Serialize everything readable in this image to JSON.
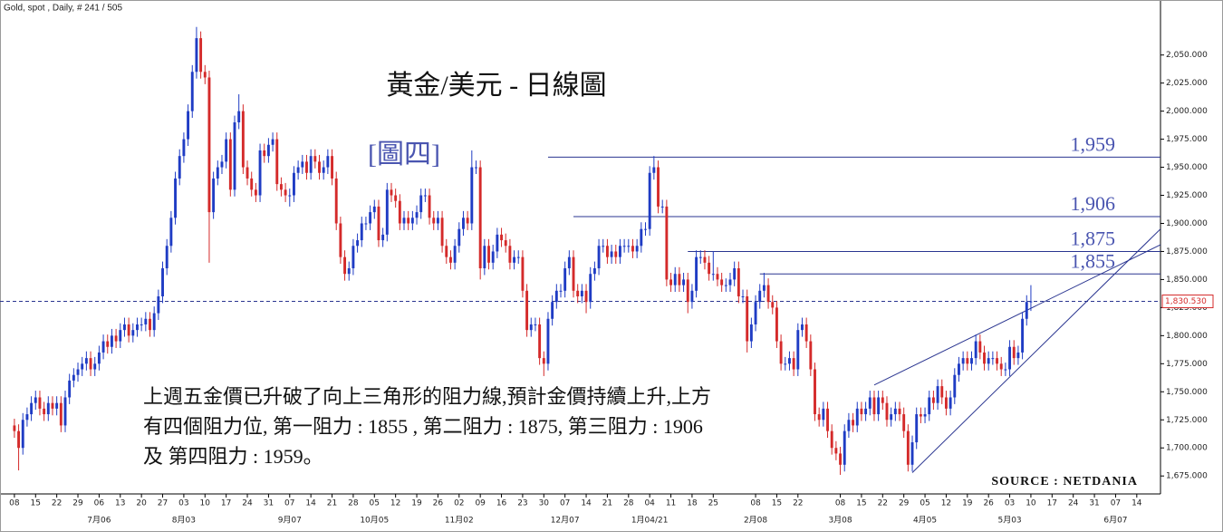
{
  "chart_data": {
    "type": "candlestick",
    "header": "Gold, spot , Daily, # 241 / 505",
    "title": "黃金/美元 - 日線圖",
    "subtitle": "[圖四]",
    "source": "SOURCE : NETDANIA",
    "annotation": [
      "上週五金價已升破了向上三角形的阻力線,預計金價持續上升,上方",
      "有四個阻力位, 第一阻力 : 1855 , 第二阻力 : 1875, 第三阻力 : 1906",
      "及 第四阻力 : 1959。"
    ],
    "colors": {
      "up": "#1f3cc4",
      "down": "#d42a2a",
      "lines": "#2a3590",
      "labels": "#4a55b0",
      "last": "#d42a2a"
    },
    "grid": false,
    "xlim": [
      -3.4,
      270.6
    ],
    "ylim": [
      1659,
      2099
    ],
    "yticks": [
      {
        "value": 1675,
        "label": "1,675.000"
      },
      {
        "value": 1700,
        "label": "1,700.000"
      },
      {
        "value": 1725,
        "label": "1,725.000"
      },
      {
        "value": 1750,
        "label": "1,750.000"
      },
      {
        "value": 1775,
        "label": "1,775.000"
      },
      {
        "value": 1800,
        "label": "1,800.000"
      },
      {
        "value": 1825,
        "label": "1,825.000"
      },
      {
        "value": 1850,
        "label": "1,850.000"
      },
      {
        "value": 1875,
        "label": "1,875.000"
      },
      {
        "value": 1900,
        "label": "1,900.000"
      },
      {
        "value": 1925,
        "label": "1,925.000"
      },
      {
        "value": 1950,
        "label": "1,950.000"
      },
      {
        "value": 1975,
        "label": "1,975.000"
      },
      {
        "value": 2000,
        "label": "2,000.000"
      },
      {
        "value": 2025,
        "label": "2,025.000"
      },
      {
        "value": 2050,
        "label": "2,050.000"
      }
    ],
    "xticks": [
      {
        "value": 0,
        "label": "08"
      },
      {
        "value": 5,
        "label": "15"
      },
      {
        "value": 10,
        "label": "22"
      },
      {
        "value": 15,
        "label": "29"
      },
      {
        "value": 20,
        "label": "06"
      },
      {
        "value": 25,
        "label": "13"
      },
      {
        "value": 30,
        "label": "20"
      },
      {
        "value": 35,
        "label": "27"
      },
      {
        "value": 40,
        "label": "03"
      },
      {
        "value": 45,
        "label": "10"
      },
      {
        "value": 50,
        "label": "17"
      },
      {
        "value": 55,
        "label": "24"
      },
      {
        "value": 60,
        "label": "31"
      },
      {
        "value": 65,
        "label": "07"
      },
      {
        "value": 70,
        "label": "14"
      },
      {
        "value": 75,
        "label": "21"
      },
      {
        "value": 80,
        "label": "28"
      },
      {
        "value": 85,
        "label": "05"
      },
      {
        "value": 90,
        "label": "12"
      },
      {
        "value": 95,
        "label": "19"
      },
      {
        "value": 100,
        "label": "26"
      },
      {
        "value": 105,
        "label": "02"
      },
      {
        "value": 110,
        "label": "09"
      },
      {
        "value": 115,
        "label": "16"
      },
      {
        "value": 120,
        "label": "23"
      },
      {
        "value": 125,
        "label": "30"
      },
      {
        "value": 130,
        "label": "07"
      },
      {
        "value": 135,
        "label": "14"
      },
      {
        "value": 140,
        "label": "21"
      },
      {
        "value": 145,
        "label": "28"
      },
      {
        "value": 150,
        "label": "04"
      },
      {
        "value": 155,
        "label": "11"
      },
      {
        "value": 160,
        "label": "18"
      },
      {
        "value": 165,
        "label": "25"
      },
      {
        "value": 175,
        "label": "08"
      },
      {
        "value": 180,
        "label": "15"
      },
      {
        "value": 185,
        "label": "22"
      },
      {
        "value": 195,
        "label": "08"
      },
      {
        "value": 200,
        "label": "15"
      },
      {
        "value": 205,
        "label": "22"
      },
      {
        "value": 210,
        "label": "29"
      },
      {
        "value": 215,
        "label": "05"
      },
      {
        "value": 220,
        "label": "12"
      },
      {
        "value": 225,
        "label": "19"
      },
      {
        "value": 230,
        "label": "26"
      },
      {
        "value": 235,
        "label": "03"
      },
      {
        "value": 240,
        "label": "10"
      },
      {
        "value": 245,
        "label": "17"
      },
      {
        "value": 250,
        "label": "24"
      },
      {
        "value": 255,
        "label": "31"
      },
      {
        "value": 260,
        "label": "07"
      },
      {
        "value": 265,
        "label": "14"
      }
    ],
    "month_ticks": [
      {
        "value": 20,
        "label": "7月06"
      },
      {
        "value": 40,
        "label": "8月03"
      },
      {
        "value": 65,
        "label": "9月07"
      },
      {
        "value": 85,
        "label": "10月05"
      },
      {
        "value": 105,
        "label": "11月02"
      },
      {
        "value": 130,
        "label": "12月07"
      },
      {
        "value": 150,
        "label": "1月04/21"
      },
      {
        "value": 175,
        "label": "2月08"
      },
      {
        "value": 195,
        "label": "3月08"
      },
      {
        "value": 215,
        "label": "4月05"
      },
      {
        "value": 235,
        "label": "5月03"
      },
      {
        "value": 260,
        "label": "6月07"
      }
    ],
    "last": {
      "value": 1830.53,
      "label": "1,830.530"
    },
    "hlines": [
      {
        "value": 1959,
        "label": "1,959",
        "start": 126
      },
      {
        "value": 1906,
        "label": "1,906",
        "start": 132
      },
      {
        "value": 1875,
        "label": "1,875",
        "start": 159
      },
      {
        "value": 1855,
        "label": "1,855",
        "start": 176
      }
    ],
    "trendlines": [
      {
        "x": [
          203,
          270.6
        ],
        "y": [
          1756,
          1881
        ]
      },
      {
        "x": [
          212,
          270.6
        ],
        "y": [
          1678,
          1895
        ]
      }
    ],
    "open": [
      1720,
      1715,
      1700,
      1725,
      1730,
      1740,
      1745,
      1735,
      1730,
      1740,
      1735,
      1740,
      1720,
      1745,
      1760,
      1765,
      1770,
      1775,
      1780,
      1770,
      1775,
      1785,
      1795,
      1790,
      1800,
      1795,
      1805,
      1810,
      1800,
      1805,
      1810,
      1810,
      1815,
      1805,
      1820,
      1835,
      1860,
      1880,
      1905,
      1940,
      1960,
      1975,
      2000,
      2035,
      2065,
      2035,
      2030,
      1910,
      1940,
      1950,
      1955,
      1975,
      1930,
      1990,
      2000,
      1950,
      1940,
      1930,
      1925,
      1965,
      1960,
      1970,
      1975,
      1935,
      1930,
      1925,
      1925,
      1945,
      1950,
      1955,
      1945,
      1960,
      1955,
      1945,
      1950,
      1960,
      1940,
      1900,
      1870,
      1855,
      1860,
      1880,
      1885,
      1900,
      1900,
      1910,
      1915,
      1885,
      1890,
      1930,
      1925,
      1920,
      1900,
      1905,
      1900,
      1905,
      1910,
      1925,
      1925,
      1905,
      1900,
      1905,
      1880,
      1870,
      1865,
      1880,
      1895,
      1905,
      1900,
      1950,
      1950,
      1860,
      1880,
      1865,
      1875,
      1890,
      1885,
      1880,
      1865,
      1870,
      1870,
      1840,
      1805,
      1810,
      1810,
      1780,
      1775,
      1815,
      1830,
      1840,
      1840,
      1860,
      1870,
      1840,
      1835,
      1840,
      1830,
      1855,
      1860,
      1880,
      1880,
      1870,
      1875,
      1870,
      1880,
      1880,
      1880,
      1875,
      1880,
      1895,
      1895,
      1945,
      1950,
      1915,
      1915,
      1850,
      1845,
      1855,
      1845,
      1850,
      1830,
      1840,
      1870,
      1870,
      1865,
      1855,
      1855,
      1850,
      1845,
      1845,
      1850,
      1860,
      1835,
      1835,
      1795,
      1810,
      1830,
      1840,
      1845,
      1830,
      1825,
      1795,
      1775,
      1775,
      1780,
      1770,
      1805,
      1810,
      1795,
      1770,
      1730,
      1725,
      1735,
      1715,
      1700,
      1695,
      1685,
      1715,
      1725,
      1720,
      1735,
      1730,
      1735,
      1745,
      1730,
      1745,
      1740,
      1725,
      1730,
      1735,
      1730,
      1715,
      1685,
      1705,
      1730,
      1728,
      1730,
      1745,
      1740,
      1755,
      1745,
      1735,
      1745,
      1765,
      1775,
      1780,
      1775,
      1780,
      1795,
      1785,
      1775,
      1780,
      1780,
      1775,
      1770,
      1770,
      1790,
      1780,
      1785,
      1815,
      1830
    ],
    "high": [
      1726,
      1721,
      1731,
      1736,
      1746,
      1751,
      1751,
      1741,
      1746,
      1746,
      1746,
      1746,
      1751,
      1766,
      1771,
      1776,
      1781,
      1786,
      1786,
      1781,
      1791,
      1801,
      1801,
      1806,
      1806,
      1811,
      1816,
      1816,
      1811,
      1816,
      1816,
      1821,
      1821,
      1826,
      1841,
      1866,
      1886,
      1911,
      1946,
      1966,
      1981,
      2006,
      2041,
      2075,
      2071,
      2041,
      2036,
      1946,
      1956,
      1961,
      1981,
      1981,
      1996,
      2015,
      2006,
      1956,
      1946,
      1936,
      1971,
      1971,
      1976,
      1981,
      1981,
      1941,
      1936,
      1931,
      1951,
      1956,
      1961,
      1961,
      1966,
      1966,
      1961,
      1956,
      1966,
      1966,
      1946,
      1906,
      1876,
      1866,
      1886,
      1891,
      1906,
      1906,
      1916,
      1921,
      1921,
      1896,
      1936,
      1936,
      1931,
      1926,
      1911,
      1911,
      1911,
      1916,
      1931,
      1931,
      1931,
      1911,
      1911,
      1911,
      1886,
      1876,
      1886,
      1901,
      1911,
      1911,
      1965,
      1956,
      1956,
      1886,
      1886,
      1881,
      1896,
      1896,
      1891,
      1886,
      1876,
      1876,
      1876,
      1846,
      1816,
      1816,
      1816,
      1786,
      1821,
      1836,
      1846,
      1846,
      1866,
      1876,
      1876,
      1846,
      1846,
      1846,
      1861,
      1866,
      1886,
      1886,
      1886,
      1881,
      1881,
      1886,
      1886,
      1886,
      1886,
      1886,
      1901,
      1901,
      1951,
      1960,
      1956,
      1921,
      1921,
      1856,
      1861,
      1861,
      1856,
      1856,
      1846,
      1876,
      1876,
      1876,
      1871,
      1875,
      1861,
      1856,
      1851,
      1856,
      1866,
      1866,
      1841,
      1841,
      1816,
      1836,
      1846,
      1856,
      1851,
      1836,
      1831,
      1801,
      1781,
      1786,
      1786,
      1811,
      1816,
      1816,
      1801,
      1776,
      1736,
      1741,
      1741,
      1721,
      1706,
      1701,
      1721,
      1731,
      1731,
      1741,
      1741,
      1741,
      1751,
      1751,
      1751,
      1751,
      1746,
      1736,
      1741,
      1741,
      1736,
      1721,
      1711,
      1736,
      1736,
      1736,
      1751,
      1751,
      1761,
      1761,
      1751,
      1751,
      1771,
      1781,
      1786,
      1786,
      1786,
      1801,
      1801,
      1791,
      1786,
      1786,
      1786,
      1781,
      1776,
      1796,
      1796,
      1791,
      1821,
      1836,
      1845
    ],
    "low": [
      1709,
      1680,
      1694,
      1719,
      1724,
      1734,
      1729,
      1724,
      1724,
      1729,
      1729,
      1714,
      1714,
      1739,
      1754,
      1759,
      1764,
      1769,
      1764,
      1764,
      1769,
      1779,
      1784,
      1784,
      1789,
      1789,
      1799,
      1794,
      1794,
      1799,
      1804,
      1804,
      1799,
      1799,
      1814,
      1829,
      1854,
      1874,
      1899,
      1934,
      1954,
      1969,
      1994,
      2029,
      2029,
      2024,
      1865,
      1904,
      1934,
      1944,
      1949,
      1924,
      1924,
      1984,
      1944,
      1934,
      1924,
      1919,
      1919,
      1954,
      1954,
      1964,
      1929,
      1924,
      1919,
      1915,
      1919,
      1939,
      1944,
      1939,
      1939,
      1949,
      1939,
      1939,
      1944,
      1934,
      1894,
      1864,
      1849,
      1849,
      1854,
      1874,
      1879,
      1894,
      1894,
      1904,
      1879,
      1879,
      1884,
      1919,
      1914,
      1894,
      1894,
      1894,
      1894,
      1899,
      1904,
      1919,
      1899,
      1894,
      1894,
      1874,
      1864,
      1859,
      1859,
      1874,
      1889,
      1894,
      1894,
      1944,
      1850,
      1854,
      1859,
      1859,
      1869,
      1879,
      1874,
      1859,
      1859,
      1864,
      1834,
      1799,
      1799,
      1804,
      1774,
      1764,
      1769,
      1809,
      1824,
      1834,
      1834,
      1854,
      1834,
      1829,
      1829,
      1820,
      1824,
      1849,
      1854,
      1874,
      1864,
      1864,
      1864,
      1864,
      1874,
      1874,
      1869,
      1869,
      1874,
      1889,
      1889,
      1939,
      1909,
      1909,
      1844,
      1839,
      1839,
      1839,
      1839,
      1820,
      1824,
      1834,
      1864,
      1859,
      1849,
      1849,
      1844,
      1839,
      1839,
      1839,
      1844,
      1829,
      1829,
      1785,
      1789,
      1804,
      1824,
      1834,
      1824,
      1819,
      1789,
      1769,
      1769,
      1769,
      1764,
      1764,
      1799,
      1789,
      1764,
      1724,
      1719,
      1719,
      1709,
      1694,
      1689,
      1676,
      1679,
      1709,
      1714,
      1714,
      1724,
      1724,
      1729,
      1724,
      1724,
      1734,
      1719,
      1719,
      1724,
      1724,
      1709,
      1679,
      1679,
      1699,
      1722,
      1722,
      1724,
      1734,
      1734,
      1739,
      1729,
      1729,
      1739,
      1759,
      1769,
      1769,
      1769,
      1774,
      1779,
      1769,
      1769,
      1774,
      1769,
      1764,
      1764,
      1764,
      1774,
      1774,
      1779,
      1809,
      1822
    ],
    "close": [
      1715,
      1700,
      1725,
      1730,
      1740,
      1745,
      1735,
      1730,
      1740,
      1735,
      1740,
      1720,
      1745,
      1760,
      1765,
      1770,
      1775,
      1780,
      1770,
      1775,
      1785,
      1795,
      1790,
      1800,
      1795,
      1805,
      1810,
      1800,
      1805,
      1810,
      1810,
      1815,
      1805,
      1820,
      1835,
      1860,
      1880,
      1905,
      1940,
      1960,
      1975,
      2000,
      2035,
      2065,
      2035,
      2030,
      1910,
      1940,
      1950,
      1955,
      1975,
      1930,
      1990,
      2000,
      1950,
      1940,
      1930,
      1925,
      1965,
      1960,
      1970,
      1975,
      1935,
      1930,
      1925,
      1925,
      1945,
      1950,
      1955,
      1945,
      1960,
      1955,
      1945,
      1950,
      1960,
      1940,
      1900,
      1870,
      1855,
      1860,
      1880,
      1885,
      1900,
      1900,
      1910,
      1915,
      1885,
      1890,
      1930,
      1925,
      1920,
      1900,
      1905,
      1900,
      1905,
      1910,
      1925,
      1925,
      1905,
      1900,
      1905,
      1880,
      1870,
      1865,
      1880,
      1895,
      1905,
      1900,
      1950,
      1950,
      1860,
      1880,
      1865,
      1875,
      1890,
      1885,
      1880,
      1865,
      1870,
      1870,
      1840,
      1805,
      1810,
      1810,
      1780,
      1775,
      1815,
      1830,
      1840,
      1840,
      1860,
      1870,
      1840,
      1835,
      1840,
      1830,
      1855,
      1860,
      1880,
      1880,
      1870,
      1875,
      1870,
      1880,
      1880,
      1880,
      1875,
      1880,
      1895,
      1895,
      1945,
      1950,
      1915,
      1915,
      1850,
      1845,
      1855,
      1845,
      1850,
      1830,
      1840,
      1870,
      1870,
      1865,
      1855,
      1855,
      1850,
      1845,
      1845,
      1850,
      1860,
      1835,
      1835,
      1795,
      1810,
      1830,
      1840,
      1845,
      1830,
      1825,
      1795,
      1775,
      1775,
      1780,
      1770,
      1805,
      1810,
      1795,
      1770,
      1730,
      1725,
      1735,
      1715,
      1700,
      1695,
      1685,
      1715,
      1725,
      1720,
      1735,
      1730,
      1735,
      1745,
      1730,
      1745,
      1740,
      1725,
      1730,
      1735,
      1730,
      1715,
      1685,
      1705,
      1730,
      1728,
      1730,
      1745,
      1740,
      1755,
      1745,
      1735,
      1745,
      1765,
      1775,
      1780,
      1775,
      1780,
      1795,
      1785,
      1775,
      1780,
      1780,
      1775,
      1770,
      1770,
      1790,
      1780,
      1785,
      1815,
      1830,
      1830.53
    ]
  }
}
